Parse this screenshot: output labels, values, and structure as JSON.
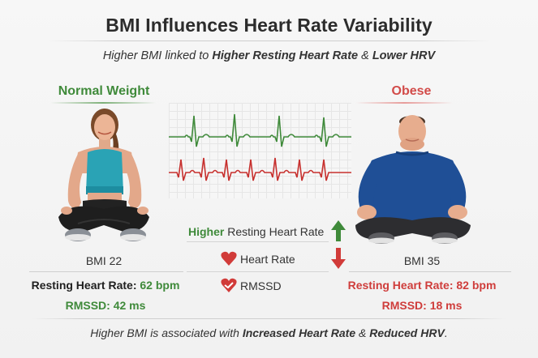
{
  "title": "BMI Influences Heart Rate Variability",
  "subtitle": {
    "pre": "Higher BMI linked to ",
    "bold1": "Higher Resting Heart Rate",
    "mid": " & ",
    "bold2": "Lower HRV"
  },
  "normal": {
    "heading": "Normal Weight",
    "bmi": "BMI 22",
    "resting_label": "Resting Heart Rate: ",
    "resting_value": "62 bpm",
    "rmssd_label": "RMSSD: ",
    "rmssd_value": "42 ms"
  },
  "obese": {
    "heading": "Obese",
    "bmi": "BMI 35",
    "resting_label": "Resting Heart Rate: ",
    "resting_value": "82 bpm",
    "rmssd_label": "RMSSD: ",
    "rmssd_value": "18 ms"
  },
  "center": {
    "higher": "Higher",
    "resting_rest": " Resting Heart Rate",
    "heart_rate": "Heart Rate",
    "rmssd": "RMSSD"
  },
  "footer": {
    "pre": "Higher BMI is associated with ",
    "bold1": "Increased Heart Rate",
    "mid": " & ",
    "bold2": "Reduced HRV",
    "post": "."
  },
  "colors": {
    "green": "#3f8a3a",
    "red": "#cf3d3b"
  },
  "icons": [
    "up-arrow-icon",
    "down-arrow-icon",
    "heart-icon",
    "heart-check-icon"
  ]
}
